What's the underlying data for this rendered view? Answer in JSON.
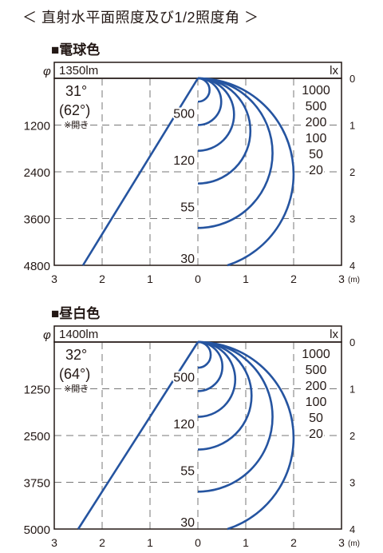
{
  "page": {
    "title": "＜ 直射水平面照度及び1/2照度角 ＞"
  },
  "chart_data": [
    {
      "type": "line",
      "title": "■電球色",
      "lumen": "1350lm",
      "phi_symbol": "φ",
      "unit_lx": "lx",
      "x_unit": "(m)",
      "angle": "31°",
      "angle_open": "(62°)",
      "open_note": "※開き",
      "x_ticks": [
        "3",
        "2",
        "1",
        "0",
        "1",
        "2",
        "3"
      ],
      "y_ticks_right": [
        "0",
        "1",
        "2",
        "3",
        "4"
      ],
      "y_ticks_left": [
        "1200",
        "2400",
        "3600",
        "4800"
      ],
      "xlim": [
        -3,
        3
      ],
      "ylim": [
        0,
        4
      ],
      "grid": true,
      "center_lux_labels": [
        {
          "text": "500",
          "depth": 0.85
        },
        {
          "text": "120",
          "depth": 1.85
        },
        {
          "text": "55",
          "depth": 2.85
        },
        {
          "text": "30",
          "depth": 3.95
        }
      ],
      "series": [
        {
          "label": "1000",
          "depth": 0.5
        },
        {
          "label": "500",
          "depth": 1.0
        },
        {
          "label": "200",
          "depth": 1.55
        },
        {
          "label": "100",
          "depth": 2.25
        },
        {
          "label": "50",
          "depth": 3.2
        },
        {
          "label": "20",
          "depth": 4.1
        }
      ],
      "beam_edge": {
        "x_at_depth_4": -2.4
      },
      "line_color": "#2554a0"
    },
    {
      "type": "line",
      "title": "■昼白色",
      "lumen": "1400lm",
      "phi_symbol": "φ",
      "unit_lx": "lx",
      "x_unit": "(m)",
      "angle": "32°",
      "angle_open": "(64°)",
      "open_note": "※開き",
      "x_ticks": [
        "3",
        "2",
        "1",
        "0",
        "1",
        "2",
        "3"
      ],
      "y_ticks_right": [
        "0",
        "1",
        "2",
        "3",
        "4"
      ],
      "y_ticks_left": [
        "1250",
        "2500",
        "3750",
        "5000"
      ],
      "xlim": [
        -3,
        3
      ],
      "ylim": [
        0,
        4
      ],
      "grid": true,
      "center_lux_labels": [
        {
          "text": "500",
          "depth": 0.85
        },
        {
          "text": "120",
          "depth": 1.85
        },
        {
          "text": "55",
          "depth": 2.85
        },
        {
          "text": "30",
          "depth": 3.95
        }
      ],
      "series": [
        {
          "label": "1000",
          "depth": 0.55
        },
        {
          "label": "500",
          "depth": 1.05
        },
        {
          "label": "200",
          "depth": 1.6
        },
        {
          "label": "100",
          "depth": 2.3
        },
        {
          "label": "50",
          "depth": 3.2
        },
        {
          "label": "20",
          "depth": 4.1
        }
      ],
      "beam_edge": {
        "x_at_depth_4": -2.5
      },
      "line_color": "#2554a0"
    }
  ]
}
